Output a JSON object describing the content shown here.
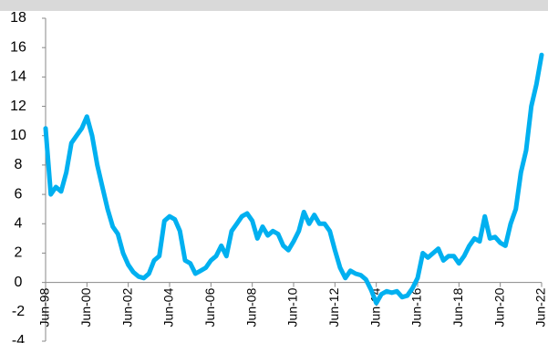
{
  "chart_data": {
    "type": "line",
    "categories": [
      "Jun-98",
      null,
      null,
      null,
      null,
      null,
      null,
      null,
      "Jun-00",
      null,
      null,
      null,
      null,
      null,
      null,
      null,
      "Jun-02",
      null,
      null,
      null,
      null,
      null,
      null,
      null,
      "Jun-04",
      null,
      null,
      null,
      null,
      null,
      null,
      null,
      "Jun-06",
      null,
      null,
      null,
      null,
      null,
      null,
      null,
      "Jun-08",
      null,
      null,
      null,
      null,
      null,
      null,
      null,
      "Jun-10",
      null,
      null,
      null,
      null,
      null,
      null,
      null,
      "Jun-12",
      null,
      null,
      null,
      null,
      null,
      null,
      null,
      "Jun-14",
      null,
      null,
      null,
      null,
      null,
      null,
      null,
      "Jun-16",
      null,
      null,
      null,
      null,
      null,
      null,
      null,
      "Jun-18",
      null,
      null,
      null,
      null,
      null,
      null,
      null,
      "Jun-20",
      null,
      null,
      null,
      null,
      null,
      null,
      null,
      "Jun-22"
    ],
    "values": [
      10.5,
      6,
      6.5,
      6.2,
      7.5,
      9.5,
      10,
      10.5,
      11.3,
      10,
      8,
      6.5,
      5,
      3.8,
      3.3,
      2,
      1.2,
      0.7,
      0.4,
      0.3,
      0.6,
      1.5,
      1.8,
      4.2,
      4.5,
      4.3,
      3.5,
      1.5,
      1.3,
      0.6,
      0.8,
      1.0,
      1.5,
      1.8,
      2.5,
      1.8,
      3.5,
      4,
      4.5,
      4.7,
      4.2,
      3,
      3.8,
      3.2,
      3.5,
      3.3,
      2.5,
      2.2,
      2.8,
      3.5,
      4.8,
      4,
      4.6,
      4,
      4,
      3.5,
      2.2,
      1.0,
      0.3,
      0.8,
      0.6,
      0.5,
      0.2,
      -0.5,
      -1.4,
      -0.8,
      -0.6,
      -0.7,
      -0.6,
      -1.0,
      -0.9,
      -0.4,
      0.3,
      2,
      1.7,
      2.0,
      2.3,
      1.5,
      1.8,
      1.8,
      1.3,
      1.8,
      2.5,
      3,
      2.8,
      4.5,
      3,
      3.1,
      2.7,
      2.5,
      4,
      5,
      7.5,
      9,
      12,
      13.5,
      15.5
    ],
    "color": "#00b0f0",
    "ylim": [
      -4,
      18
    ],
    "yticks": [
      -4,
      -2,
      0,
      2,
      4,
      6,
      8,
      10,
      12,
      14,
      16,
      18
    ]
  }
}
